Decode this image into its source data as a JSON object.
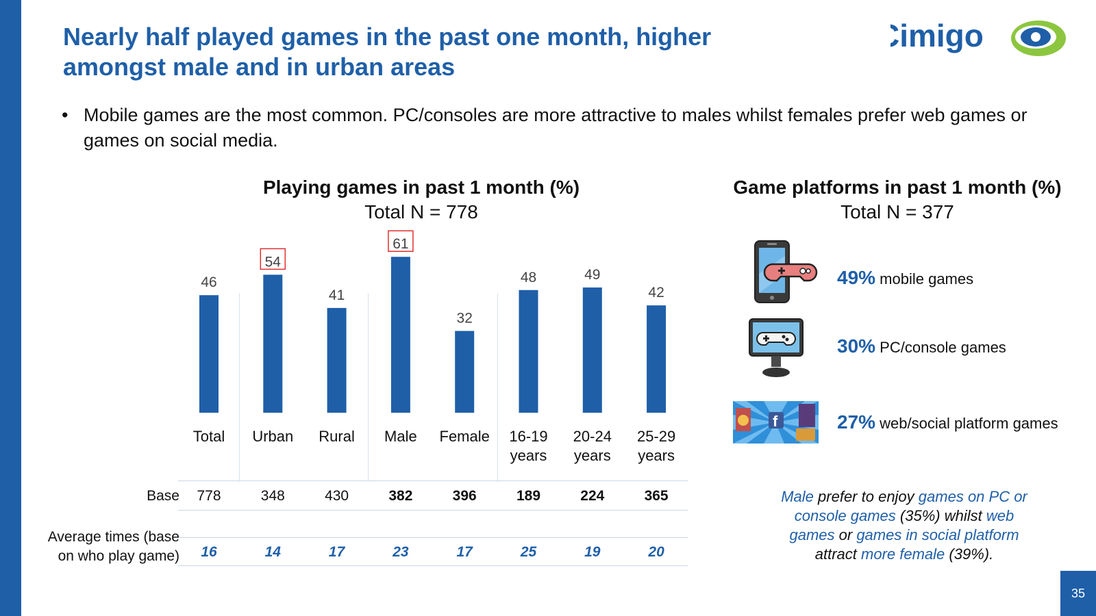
{
  "title": "Nearly half played games in the past one month, higher amongst male and in urban areas",
  "logo_text": "Cimigo",
  "bullet": "Mobile games are the most common. PC/consoles are more attractive to males whilst females prefer web games or games on social media.",
  "chart_data": {
    "type": "bar",
    "title": "Playing games in past 1 month (%)",
    "subtitle": "Total N = 778",
    "categories": [
      "Total",
      "Urban",
      "Rural",
      "Male",
      "Female",
      "16-19 years",
      "20-24 years",
      "25-29 years"
    ],
    "values": [
      46,
      54,
      41,
      61,
      32,
      48,
      49,
      42
    ],
    "highlighted": [
      "Urban",
      "Male"
    ],
    "ylim": [
      0,
      70
    ],
    "xlabel": "",
    "ylabel": "",
    "bar_color": "#1f5fa8"
  },
  "table": {
    "base_label": "Base",
    "base_values": [
      "778",
      "348",
      "430",
      "382",
      "396",
      "189",
      "224",
      "365"
    ],
    "avg_label": "Average times (base on who play game)",
    "avg_values": [
      "16",
      "14",
      "17",
      "23",
      "17",
      "25",
      "19",
      "20"
    ]
  },
  "platforms": {
    "title": "Game platforms in past 1 month (%)",
    "subtitle": "Total N = 377",
    "items": [
      {
        "pct": "49%",
        "label": "mobile games",
        "icon": "mobile-gamepad-icon"
      },
      {
        "pct": "30%",
        "label": "PC/console games",
        "icon": "monitor-gamepad-icon"
      },
      {
        "pct": "27%",
        "label": "web/social platform games",
        "icon": "social-games-icon"
      }
    ]
  },
  "note": {
    "p1": "Male",
    "p2": " prefer to enjoy ",
    "p3": "games on PC or console games",
    "p4": " (35%) whilst ",
    "p5": "web games",
    "p6": " or ",
    "p7": "games in social platform",
    "p8": " attract ",
    "p9": "more female",
    "p10": " (39%)."
  },
  "page_number": "35",
  "colors": {
    "accent": "#1f5fa8",
    "highlight_box": "#e03030",
    "logo_green": "#8cc63f"
  }
}
